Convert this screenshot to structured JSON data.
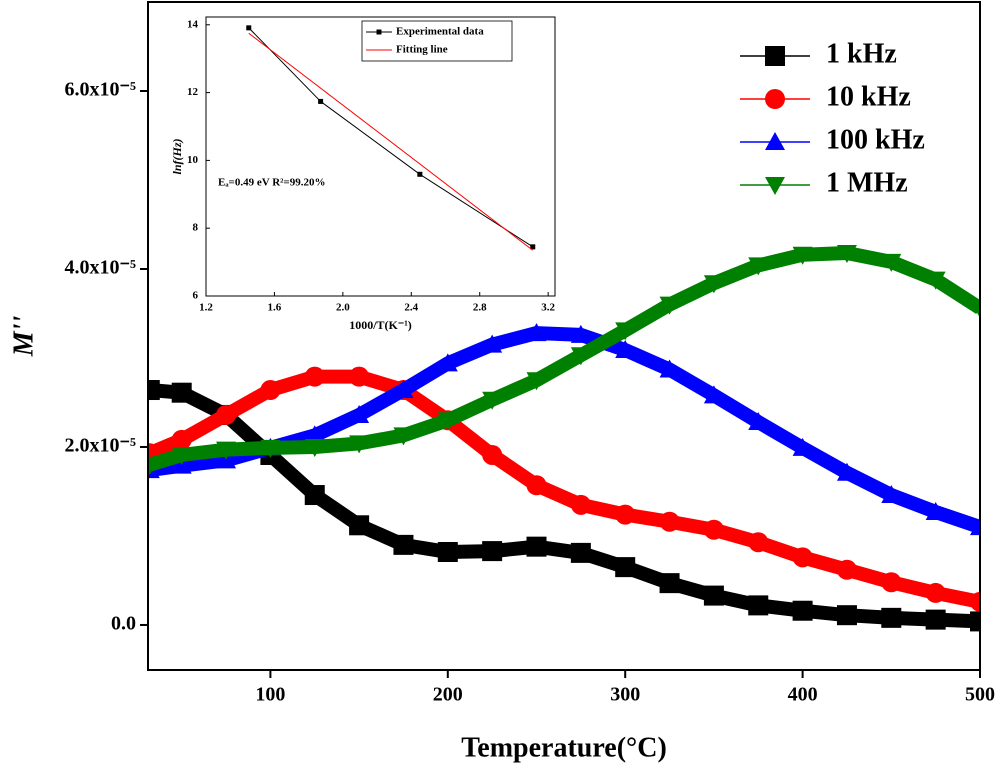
{
  "chart_data": [
    {
      "type": "line",
      "xlabel": "Temperature(°C)",
      "ylabel": "M''",
      "x": [
        32,
        50,
        75,
        100,
        125,
        150,
        175,
        200,
        225,
        250,
        275,
        300,
        325,
        350,
        375,
        400,
        425,
        450,
        475,
        500
      ],
      "series": [
        {
          "name": "1 kHz",
          "color": "#000000",
          "marker": "square",
          "values": [
            2.64e-05,
            2.61e-05,
            2.36e-05,
            1.91e-05,
            1.46e-05,
            1.12e-05,
            9e-06,
            8.2e-06,
            8.3e-06,
            8.8e-06,
            8.1e-06,
            6.5e-06,
            4.7e-06,
            3.3e-06,
            2.2e-06,
            1.6e-06,
            1.1e-06,
            8e-07,
            6e-07,
            4e-07
          ]
        },
        {
          "name": "10 kHz",
          "color": "#ff0000",
          "marker": "circle",
          "values": [
            1.93e-05,
            2.08e-05,
            2.36e-05,
            2.64e-05,
            2.79e-05,
            2.79e-05,
            2.64e-05,
            2.3e-05,
            1.91e-05,
            1.57e-05,
            1.35e-05,
            1.24e-05,
            1.16e-05,
            1.07e-05,
            9.3e-06,
            7.6e-06,
            6.2e-06,
            4.8e-06,
            3.6e-06,
            2.6e-06
          ]
        },
        {
          "name": "100 kHz",
          "color": "#0000ff",
          "marker": "triangle-up",
          "values": [
            1.74e-05,
            1.79e-05,
            1.85e-05,
            1.99e-05,
            2.13e-05,
            2.36e-05,
            2.64e-05,
            2.94e-05,
            3.15e-05,
            3.28e-05,
            3.26e-05,
            3.09e-05,
            2.87e-05,
            2.58e-05,
            2.28e-05,
            1.99e-05,
            1.71e-05,
            1.46e-05,
            1.27e-05,
            1.1e-05
          ]
        },
        {
          "name": "1 MHz",
          "color": "#008000",
          "marker": "triangle-down",
          "values": [
            1.8e-05,
            1.91e-05,
            1.97e-05,
            1.99e-05,
            2e-05,
            2.04e-05,
            2.13e-05,
            2.3e-05,
            2.53e-05,
            2.75e-05,
            3.03e-05,
            3.31e-05,
            3.6e-05,
            3.84e-05,
            4.04e-05,
            4.16e-05,
            4.18e-05,
            4.08e-05,
            3.88e-05,
            3.56e-05
          ]
        }
      ],
      "xlim": [
        31,
        500
      ],
      "xticks": [
        100,
        200,
        300,
        400,
        500
      ],
      "ylim": [
        -5.06e-06,
        7e-05
      ],
      "yticks": [
        {
          "value": 0,
          "label": "0.0"
        },
        {
          "value": 2e-05,
          "label": "2.0x10⁻⁵"
        },
        {
          "value": 4e-05,
          "label": "4.0x10⁻⁵"
        },
        {
          "value": 6e-05,
          "label": "6.0x10⁻⁵"
        }
      ],
      "legend": "upper right",
      "grid": false
    },
    {
      "type": "line",
      "xlabel": "1000/T(K⁻¹)",
      "ylabel": "lnf(Hz)",
      "annotation": "Eₐ=0.49 eV  R²=99.20%",
      "series": [
        {
          "name": "Experimental data",
          "color": "#000000",
          "marker": "square",
          "x": [
            1.45,
            1.87,
            2.45,
            3.11
          ],
          "values": [
            13.91,
            11.74,
            9.59,
            7.45
          ]
        },
        {
          "name": "Fitting line",
          "color": "#ff0000",
          "x": [
            1.45,
            3.11
          ],
          "values": [
            13.75,
            7.35
          ]
        }
      ],
      "xlim": [
        1.2,
        3.24
      ],
      "xticks": [
        1.2,
        1.6,
        {
          "value": 2,
          "label": "2.0"
        },
        2.4,
        2.8,
        3.2
      ],
      "ylim": [
        6,
        14.23
      ],
      "yticks": [
        6,
        8,
        10,
        12,
        14
      ],
      "legend": "upper right",
      "grid": false
    }
  ]
}
